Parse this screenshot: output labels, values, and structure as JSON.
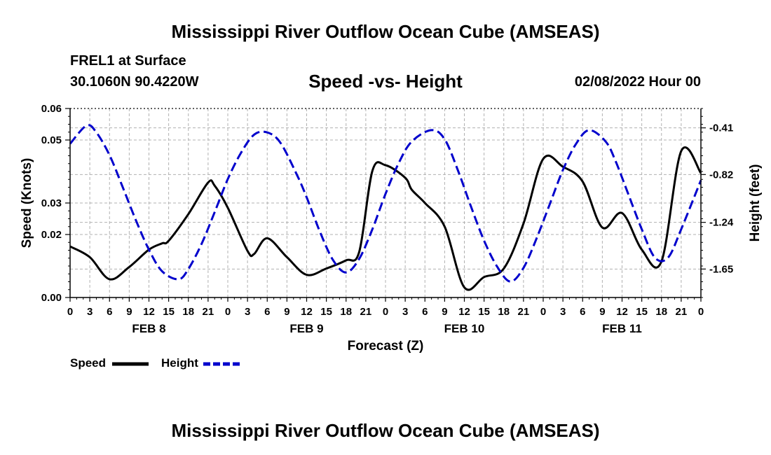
{
  "title": "Mississippi River Outflow Ocean Cube (AMSEAS)",
  "station": "FREL1 at Surface",
  "coordinates": "30.1060N  90.4220W",
  "subtitle": "Speed -vs- Height",
  "datetime": "02/08/2022 Hour 00",
  "bottom_title": "Mississippi River Outflow Ocean Cube (AMSEAS)",
  "legend": {
    "speed": "Speed",
    "height": "Height"
  },
  "colors": {
    "speed": "#000000",
    "height": "#0000cc",
    "grid": "#b0b0b0"
  },
  "chart_data": {
    "type": "line",
    "title": "Speed -vs- Height",
    "xlabel": "Forecast (Z)",
    "ylabel": "Speed (Knots)",
    "y2label": "Height (feet)",
    "xlim": [
      0,
      96
    ],
    "ylim": [
      0,
      0.06
    ],
    "y2lim": [
      -1.9,
      -0.24
    ],
    "x_ticks": [
      0,
      3,
      6,
      9,
      12,
      15,
      18,
      21,
      24,
      27,
      30,
      33,
      36,
      39,
      42,
      45,
      48,
      51,
      54,
      57,
      60,
      63,
      66,
      69,
      72,
      75,
      78,
      81,
      84,
      87,
      90,
      93,
      96
    ],
    "x_tick_labels": [
      "0",
      "3",
      "6",
      "9",
      "12",
      "15",
      "18",
      "21",
      "0",
      "3",
      "6",
      "9",
      "12",
      "15",
      "18",
      "21",
      "0",
      "3",
      "6",
      "9",
      "12",
      "15",
      "18",
      "21",
      "0",
      "3",
      "6",
      "9",
      "12",
      "15",
      "18",
      "21",
      "0"
    ],
    "day_labels": [
      {
        "label": "FEB 8",
        "x": 12
      },
      {
        "label": "FEB 9",
        "x": 36
      },
      {
        "label": "FEB 10",
        "x": 60
      },
      {
        "label": "FEB 11",
        "x": 84
      }
    ],
    "y_ticks": [
      0.0,
      0.02,
      0.03,
      0.05,
      0.06
    ],
    "y_tick_labels": [
      "0.00",
      "0.02",
      "0.03",
      "0.05",
      "0.06"
    ],
    "y2_ticks": [
      -0.41,
      -0.82,
      -1.24,
      -1.65
    ],
    "y2_tick_labels": [
      "-0.41",
      "-0.82",
      "-1.24",
      "-1.65"
    ],
    "grid": true,
    "series": [
      {
        "name": "Speed",
        "axis": "left",
        "style": "solid",
        "x": [
          0,
          3,
          6,
          9,
          12,
          14,
          15,
          18,
          21,
          22,
          24,
          27,
          28,
          30,
          33,
          36,
          39,
          42,
          44,
          46,
          48,
          51,
          52,
          54,
          57,
          60,
          63,
          66,
          69,
          72,
          75,
          78,
          81,
          84,
          87,
          90,
          93,
          96
        ],
        "values": [
          0.0162,
          0.0128,
          0.0058,
          0.0097,
          0.0152,
          0.0172,
          0.018,
          0.0265,
          0.0365,
          0.0355,
          0.0285,
          0.0148,
          0.0138,
          0.0188,
          0.0128,
          0.0072,
          0.0092,
          0.0118,
          0.0145,
          0.0402,
          0.042,
          0.038,
          0.0342,
          0.03,
          0.0225,
          0.0032,
          0.0065,
          0.0092,
          0.0235,
          0.044,
          0.0415,
          0.0368,
          0.0222,
          0.0268,
          0.0152,
          0.0115,
          0.0465,
          0.0395
        ]
      },
      {
        "name": "Height",
        "axis": "right",
        "style": "dashed",
        "x": [
          0,
          2.5,
          4,
          6,
          8,
          10,
          12,
          14,
          16.5,
          18,
          20,
          22,
          24,
          26,
          28,
          30,
          32,
          34.5,
          36,
          38,
          40,
          42,
          44,
          46,
          48,
          50,
          52,
          55,
          57,
          59,
          61,
          63,
          65,
          67,
          69,
          71,
          73,
          75,
          77,
          79,
          81.5,
          83,
          85,
          87,
          89,
          91,
          93,
          96
        ],
        "values": [
          -0.55,
          -0.39,
          -0.45,
          -0.65,
          -0.93,
          -1.22,
          -1.48,
          -1.67,
          -1.74,
          -1.65,
          -1.43,
          -1.15,
          -0.86,
          -0.63,
          -0.47,
          -0.45,
          -0.54,
          -0.82,
          -1.02,
          -1.32,
          -1.57,
          -1.68,
          -1.56,
          -1.3,
          -0.99,
          -0.72,
          -0.53,
          -0.43,
          -0.51,
          -0.78,
          -1.1,
          -1.4,
          -1.63,
          -1.76,
          -1.64,
          -1.38,
          -1.08,
          -0.78,
          -0.55,
          -0.43,
          -0.53,
          -0.7,
          -1.0,
          -1.3,
          -1.55,
          -1.55,
          -1.3,
          -0.87
        ]
      }
    ]
  }
}
